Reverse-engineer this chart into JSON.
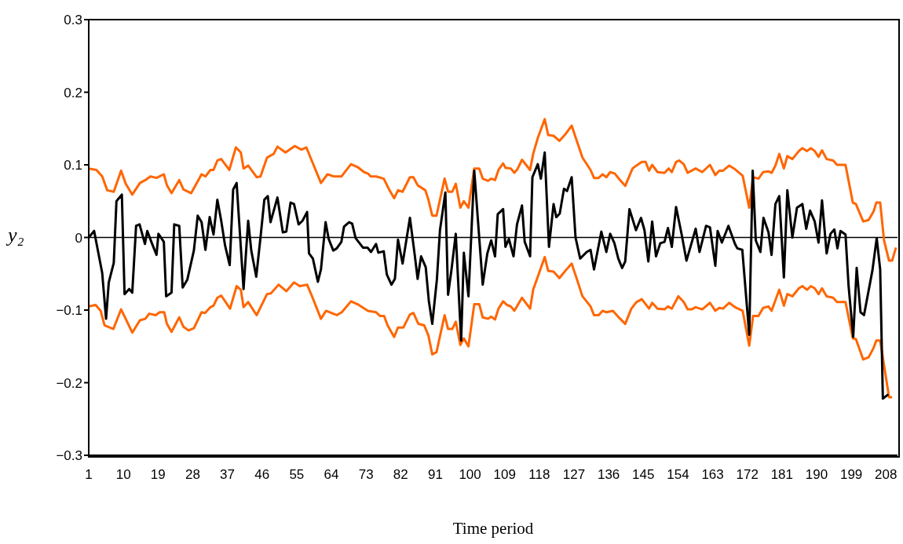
{
  "chart_data": {
    "type": "line",
    "xlabel": "Time period",
    "ylabel": "y₂",
    "xlim": [
      1,
      211
    ],
    "xticks": [
      1,
      10,
      19,
      28,
      37,
      46,
      55,
      64,
      73,
      82,
      91,
      100,
      109,
      118,
      127,
      136,
      145,
      154,
      163,
      172,
      181,
      190,
      199,
      208
    ],
    "ylim": [
      -0.3,
      0.3
    ],
    "yticks": [
      {
        "value": -0.3,
        "label": "−0.3"
      },
      {
        "value": -0.2,
        "label": "−0.2"
      },
      {
        "value": -0.1,
        "label": "−0.1"
      },
      0,
      0.1,
      0.2,
      0.3
    ],
    "grid": false,
    "marker": "none",
    "line_style": "solid",
    "ref_lines": [
      {
        "axis": "y",
        "value": 0,
        "color": "#000000"
      }
    ],
    "series": [
      {
        "color": "#ff6600",
        "x": [
          1,
          3,
          4.5,
          5.8,
          7.5,
          9.4,
          10.6,
          12.3,
          14.3,
          15.7,
          17,
          18.6,
          20.5,
          21.3,
          22.5,
          24.5,
          25.6,
          27.6,
          30.3,
          31.3,
          32.6,
          33.4,
          34.4,
          35.4,
          37.5,
          39.2,
          40.5,
          41.2,
          42.4,
          44.6,
          45.6,
          47.3,
          49,
          50,
          52.1,
          54.5,
          56.2,
          57.5,
          58.9,
          61.3,
          63,
          64.7,
          66.6,
          69.1,
          70.8,
          72.5,
          73.5,
          74.2,
          75.6,
          77.6,
          79,
          80.3,
          81.3,
          82.5,
          84.4,
          85.3,
          86.4,
          88.4,
          89.2,
          90.2,
          91.3,
          93.4,
          94.3,
          95.4,
          96.3,
          97.5,
          98.4,
          99.6,
          101.1,
          102.4,
          103.3,
          104.7,
          105.5,
          106.5,
          107.4,
          108.6,
          109.2,
          110.6,
          111.5,
          112.3,
          113.5,
          115.6,
          116.4,
          117.6,
          119.4,
          120.3,
          121.7,
          123.2,
          124.9,
          126.4,
          127.6,
          129.2,
          131.3,
          132.2,
          133.4,
          134.4,
          135.4,
          136.4,
          137.6,
          138.8,
          140.3,
          142.2,
          143.2,
          144.6,
          145.6,
          146.5,
          147.3,
          148.7,
          150.5,
          151.6,
          152.4,
          153.5,
          154.3,
          155.5,
          156.5,
          158.6,
          160.3,
          162.3,
          163.7,
          164.7,
          165.7,
          167.3,
          168.8,
          170.8,
          172.5,
          173.5,
          174.9,
          176.1,
          177.5,
          178.3,
          179.3,
          180.3,
          181.5,
          182.4,
          183.7,
          185.4,
          186.3,
          187.5,
          188.5,
          189.5,
          190.5,
          191.4,
          192.6,
          194.3,
          195.3,
          197.5,
          199.4,
          200.2,
          202.1,
          203.5,
          204.8,
          205.5,
          206.5,
          207.5,
          208.8,
          209.6,
          210.6
        ],
        "values": [
          0.095,
          0.093,
          0.084,
          0.065,
          0.063,
          0.092,
          0.074,
          0.059,
          0.075,
          0.079,
          0.084,
          0.082,
          0.087,
          0.072,
          0.061,
          0.079,
          0.066,
          0.061,
          0.087,
          0.084,
          0.093,
          0.093,
          0.106,
          0.108,
          0.093,
          0.124,
          0.117,
          0.095,
          0.099,
          0.083,
          0.084,
          0.11,
          0.115,
          0.125,
          0.117,
          0.126,
          0.121,
          0.124,
          0.106,
          0.075,
          0.087,
          0.084,
          0.084,
          0.101,
          0.097,
          0.09,
          0.088,
          0.084,
          0.084,
          0.081,
          0.066,
          0.054,
          0.065,
          0.063,
          0.083,
          0.083,
          0.072,
          0.065,
          0.052,
          0.03,
          0.03,
          0.081,
          0.063,
          0.063,
          0.074,
          0.041,
          0.05,
          0.041,
          0.095,
          0.095,
          0.081,
          0.078,
          0.081,
          0.079,
          0.093,
          0.102,
          0.096,
          0.095,
          0.089,
          0.094,
          0.107,
          0.093,
          0.115,
          0.137,
          0.163,
          0.141,
          0.14,
          0.133,
          0.143,
          0.154,
          0.135,
          0.11,
          0.093,
          0.082,
          0.082,
          0.087,
          0.083,
          0.09,
          0.088,
          0.08,
          0.071,
          0.095,
          0.099,
          0.104,
          0.104,
          0.092,
          0.1,
          0.09,
          0.089,
          0.095,
          0.09,
          0.104,
          0.106,
          0.101,
          0.089,
          0.095,
          0.09,
          0.1,
          0.086,
          0.092,
          0.092,
          0.099,
          0.094,
          0.085,
          0.041,
          0.083,
          0.081,
          0.09,
          0.091,
          0.089,
          0.099,
          0.115,
          0.095,
          0.112,
          0.108,
          0.119,
          0.123,
          0.119,
          0.123,
          0.119,
          0.111,
          0.12,
          0.108,
          0.106,
          0.1,
          0.1,
          0.048,
          0.046,
          0.022,
          0.024,
          0.036,
          0.048,
          0.048,
          -0.004,
          -0.032,
          -0.032,
          -0.014
        ]
      },
      {
        "color": "#ff6600",
        "x": [
          1,
          2.8,
          4.1,
          5.1,
          7.4,
          9.4,
          10.6,
          12.3,
          14.3,
          15.7,
          16.7,
          18.4,
          19.4,
          20.6,
          21.3,
          22.5,
          24.5,
          25.6,
          26.9,
          28.3,
          30.3,
          31.2,
          32.6,
          33.4,
          34.4,
          35.4,
          37.7,
          39.4,
          40.5,
          41.2,
          42.4,
          44.6,
          47.3,
          48.3,
          50.3,
          52.3,
          54.3,
          55.8,
          57.7,
          58.9,
          61.3,
          62.6,
          65.4,
          66.7,
          69.1,
          70.8,
          73.5,
          75.6,
          76.6,
          77.7,
          78.6,
          80.3,
          81.3,
          82.7,
          84.4,
          85.3,
          86.6,
          88.1,
          89.2,
          90.2,
          91.3,
          93.4,
          94.3,
          95.4,
          96.3,
          97.5,
          98.4,
          99.6,
          101.1,
          102.4,
          103.3,
          104.7,
          105.5,
          106.5,
          107.4,
          108.6,
          109.6,
          110.6,
          111.5,
          113.5,
          115.6,
          116.4,
          117.6,
          119.4,
          120.3,
          121.7,
          123.2,
          124.9,
          126.4,
          127.6,
          129.2,
          131.3,
          132.2,
          133.4,
          134.4,
          135.4,
          137.1,
          138.8,
          140.3,
          141.9,
          143.2,
          144.6,
          146.5,
          147.3,
          148.7,
          150.5,
          151.4,
          152.4,
          154.1,
          155.5,
          156.5,
          157.5,
          158.6,
          160.3,
          162.3,
          163.7,
          164.7,
          165.7,
          167.3,
          168.8,
          170.8,
          172.5,
          173.5,
          174.9,
          176.1,
          177.5,
          178.3,
          180.3,
          181.5,
          182.4,
          183.7,
          185.4,
          186.3,
          187.5,
          188.5,
          189.5,
          190.5,
          191.4,
          192.6,
          194.3,
          195.3,
          197.5,
          199.4,
          200.2,
          202.1,
          203.5,
          204.8,
          205.5,
          206.5,
          208.8,
          209.6
        ],
        "values": [
          -0.095,
          -0.093,
          -0.101,
          -0.121,
          -0.126,
          -0.099,
          -0.112,
          -0.131,
          -0.114,
          -0.112,
          -0.105,
          -0.107,
          -0.103,
          -0.103,
          -0.119,
          -0.13,
          -0.11,
          -0.123,
          -0.128,
          -0.125,
          -0.103,
          -0.104,
          -0.096,
          -0.094,
          -0.083,
          -0.08,
          -0.098,
          -0.067,
          -0.072,
          -0.096,
          -0.089,
          -0.107,
          -0.078,
          -0.077,
          -0.065,
          -0.074,
          -0.062,
          -0.067,
          -0.065,
          -0.08,
          -0.112,
          -0.101,
          -0.107,
          -0.103,
          -0.088,
          -0.092,
          -0.101,
          -0.103,
          -0.108,
          -0.108,
          -0.121,
          -0.137,
          -0.124,
          -0.124,
          -0.106,
          -0.104,
          -0.119,
          -0.121,
          -0.135,
          -0.161,
          -0.158,
          -0.107,
          -0.126,
          -0.126,
          -0.116,
          -0.148,
          -0.139,
          -0.15,
          -0.092,
          -0.092,
          -0.11,
          -0.112,
          -0.109,
          -0.113,
          -0.098,
          -0.088,
          -0.093,
          -0.095,
          -0.101,
          -0.083,
          -0.098,
          -0.072,
          -0.054,
          -0.027,
          -0.046,
          -0.047,
          -0.056,
          -0.045,
          -0.036,
          -0.055,
          -0.081,
          -0.095,
          -0.107,
          -0.107,
          -0.101,
          -0.103,
          -0.101,
          -0.111,
          -0.119,
          -0.098,
          -0.089,
          -0.085,
          -0.098,
          -0.09,
          -0.098,
          -0.099,
          -0.095,
          -0.098,
          -0.081,
          -0.089,
          -0.099,
          -0.099,
          -0.096,
          -0.099,
          -0.09,
          -0.101,
          -0.097,
          -0.098,
          -0.09,
          -0.096,
          -0.101,
          -0.149,
          -0.108,
          -0.108,
          -0.097,
          -0.095,
          -0.101,
          -0.072,
          -0.094,
          -0.078,
          -0.081,
          -0.07,
          -0.067,
          -0.072,
          -0.067,
          -0.07,
          -0.078,
          -0.07,
          -0.081,
          -0.083,
          -0.089,
          -0.089,
          -0.139,
          -0.14,
          -0.168,
          -0.165,
          -0.152,
          -0.142,
          -0.142,
          -0.22,
          -0.22
        ]
      },
      {
        "color": "#000000",
        "x": [
          1,
          2.4,
          4.5,
          5.5,
          6.2,
          7.5,
          8.2,
          9.6,
          10.3,
          11.5,
          12.3,
          13.3,
          14.2,
          15.6,
          16.2,
          17.4,
          18.6,
          19.1,
          20.5,
          21.1,
          22.5,
          23.2,
          24.5,
          25.4,
          26.6,
          28.3,
          29.3,
          30.3,
          31.3,
          32.4,
          33.4,
          34.4,
          35.4,
          36.4,
          37.6,
          38.5,
          39.4,
          41.2,
          42.4,
          43.2,
          44.5,
          45.6,
          46.6,
          47.5,
          48.2,
          50,
          51.4,
          52.3,
          53.4,
          54.3,
          55.5,
          56.5,
          57.7,
          58.2,
          59.2,
          60.5,
          61.3,
          62.5,
          63.3,
          64.5,
          65.4,
          66.6,
          67.3,
          68.6,
          69.4,
          70.3,
          72.2,
          73.4,
          74.3,
          75.6,
          76.2,
          77.6,
          78.4,
          79.6,
          80.5,
          81.3,
          82.5,
          84.4,
          85.6,
          86.4,
          87.3,
          88.5,
          89.3,
          90.2,
          91.4,
          92.2,
          93.6,
          94.3,
          95.2,
          96.3,
          97.7,
          98.4,
          99.6,
          101.1,
          103.3,
          104.5,
          105.5,
          106.5,
          107.2,
          108.6,
          109.2,
          110.1,
          111.3,
          112.2,
          113.5,
          114.2,
          115.6,
          116.2,
          117.6,
          118.4,
          119.4,
          120.5,
          121.7,
          122.4,
          123.3,
          124.4,
          125.2,
          126.4,
          127.4,
          128.6,
          130.3,
          131.3,
          132.2,
          134.1,
          135.4,
          136.4,
          137.5,
          138.5,
          139.5,
          140.3,
          141.4,
          143.1,
          144.4,
          145.3,
          146.3,
          147.3,
          148.3,
          149.4,
          150.5,
          151.4,
          152.4,
          153.5,
          155,
          156.2,
          158.6,
          159.6,
          161.3,
          162.3,
          163.7,
          164.3,
          165.4,
          167.1,
          168.8,
          169.4,
          170.7,
          172.5,
          173.4,
          174.2,
          175.4,
          176.2,
          177.5,
          178.3,
          179.3,
          180.3,
          181.5,
          182.4,
          183.7,
          184.9,
          186.3,
          187.3,
          188.3,
          189.5,
          190.5,
          191.4,
          192.6,
          193.6,
          194.6,
          195.4,
          196.2,
          197.5,
          198.3,
          199.5,
          200.4,
          201.4,
          202.3,
          204.5,
          205.6,
          206.5,
          207.2,
          208.6
        ],
        "values": [
          0,
          0.009,
          -0.049,
          -0.112,
          -0.062,
          -0.035,
          0.05,
          0.059,
          -0.078,
          -0.071,
          -0.076,
          0.016,
          0.018,
          -0.009,
          0.009,
          -0.008,
          -0.024,
          0.005,
          -0.006,
          -0.081,
          -0.076,
          0.018,
          0.016,
          -0.069,
          -0.058,
          -0.018,
          0.03,
          0.021,
          -0.017,
          0.028,
          0.004,
          0.052,
          0.023,
          -0.011,
          -0.038,
          0.066,
          0.075,
          -0.071,
          0.023,
          -0.018,
          -0.054,
          0,
          0.052,
          0.057,
          0.021,
          0.055,
          0.007,
          0.008,
          0.048,
          0.046,
          0.018,
          0.023,
          0.035,
          -0.022,
          -0.029,
          -0.061,
          -0.044,
          0.021,
          -0.002,
          -0.018,
          -0.015,
          -0.006,
          0.015,
          0.021,
          0.019,
          -0.001,
          -0.014,
          -0.014,
          -0.02,
          -0.009,
          -0.021,
          -0.019,
          -0.051,
          -0.065,
          -0.057,
          -0.003,
          -0.036,
          0.027,
          -0.022,
          -0.057,
          -0.026,
          -0.041,
          -0.087,
          -0.119,
          -0.058,
          0.01,
          0.062,
          -0.079,
          -0.044,
          0.005,
          -0.142,
          -0.021,
          -0.081,
          0.092,
          -0.065,
          -0.022,
          -0.004,
          -0.026,
          0.032,
          0.039,
          -0.013,
          -0.002,
          -0.026,
          0.018,
          0.044,
          -0.006,
          -0.026,
          0.083,
          0.101,
          0.081,
          0.117,
          -0.013,
          0.046,
          0.028,
          0.033,
          0.067,
          0.064,
          0.083,
          0,
          -0.029,
          -0.02,
          -0.017,
          -0.044,
          0.008,
          -0.02,
          0.005,
          -0.008,
          -0.029,
          -0.042,
          -0.033,
          0.039,
          0.01,
          0.027,
          0.01,
          -0.033,
          0.022,
          -0.026,
          -0.008,
          -0.006,
          0.013,
          -0.013,
          0.042,
          0.003,
          -0.032,
          0.012,
          -0.02,
          0.016,
          0.014,
          -0.039,
          0.009,
          -0.007,
          0.016,
          -0.009,
          -0.015,
          -0.017,
          -0.134,
          0.092,
          -0.004,
          -0.02,
          0.027,
          0.007,
          -0.024,
          0.046,
          0.057,
          -0.055,
          0.065,
          0,
          0.041,
          0.046,
          0.012,
          0.037,
          0.022,
          -0.007,
          0.051,
          -0.022,
          0.005,
          0.011,
          -0.015,
          0.009,
          0.004,
          -0.067,
          -0.137,
          -0.042,
          -0.103,
          -0.107,
          -0.045,
          -0.001,
          -0.044,
          -0.222,
          -0.216
        ]
      }
    ]
  }
}
